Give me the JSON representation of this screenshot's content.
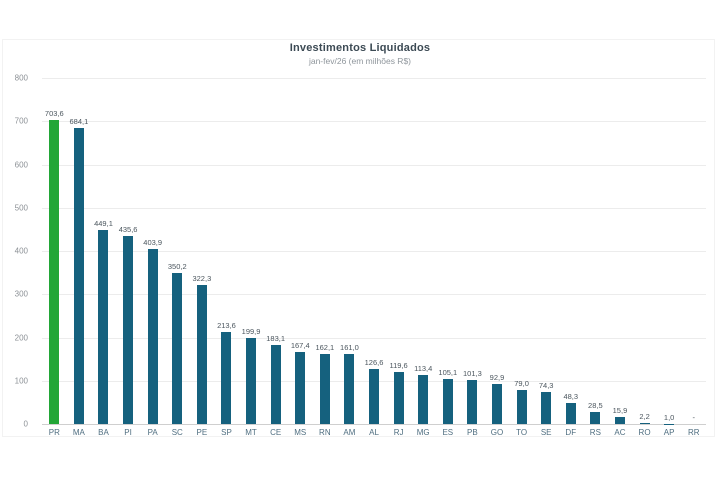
{
  "chart": {
    "title": "Investimentos Liquidados",
    "subtitle": "jan-fev/26 (em milhões R$)"
  },
  "chart_data": {
    "type": "bar",
    "title": "Investimentos Liquidados",
    "subtitle": "jan-fev/26 (em milhões R$)",
    "categories": [
      "PR",
      "MA",
      "BA",
      "PI",
      "PA",
      "SC",
      "PE",
      "SP",
      "MT",
      "CE",
      "MS",
      "RN",
      "AM",
      "AL",
      "RJ",
      "MG",
      "ES",
      "PB",
      "GO",
      "TO",
      "SE",
      "DF",
      "RS",
      "AC",
      "RO",
      "AP",
      "RR"
    ],
    "values": [
      703.6,
      684.1,
      449.1,
      435.6,
      403.9,
      350.2,
      322.3,
      213.6,
      199.9,
      183.1,
      167.4,
      162.1,
      161.0,
      126.6,
      119.6,
      113.4,
      105.1,
      101.3,
      92.9,
      79.0,
      74.3,
      48.3,
      28.5,
      15.9,
      2.2,
      1.0,
      null
    ],
    "value_labels": [
      "703,6",
      "684,1",
      "449,1",
      "435,6",
      "403,9",
      "350,2",
      "322,3",
      "213,6",
      "199,9",
      "183,1",
      "167,4",
      "162,1",
      "161,0",
      "126,6",
      "119,6",
      "113,4",
      "105,1",
      "101,3",
      "92,9",
      "79,0",
      "74,3",
      "48,3",
      "28,5",
      "15,9",
      "2,2",
      "1,0",
      "-"
    ],
    "xlabel": "",
    "ylabel": "",
    "ylim": [
      0,
      800
    ],
    "yticks": [
      0,
      100,
      200,
      300,
      400,
      500,
      600,
      700,
      800
    ],
    "grid": true,
    "legend": false,
    "colors": {
      "highlight": "#22a637",
      "default": "#15617e"
    },
    "highlight_index": 0
  }
}
